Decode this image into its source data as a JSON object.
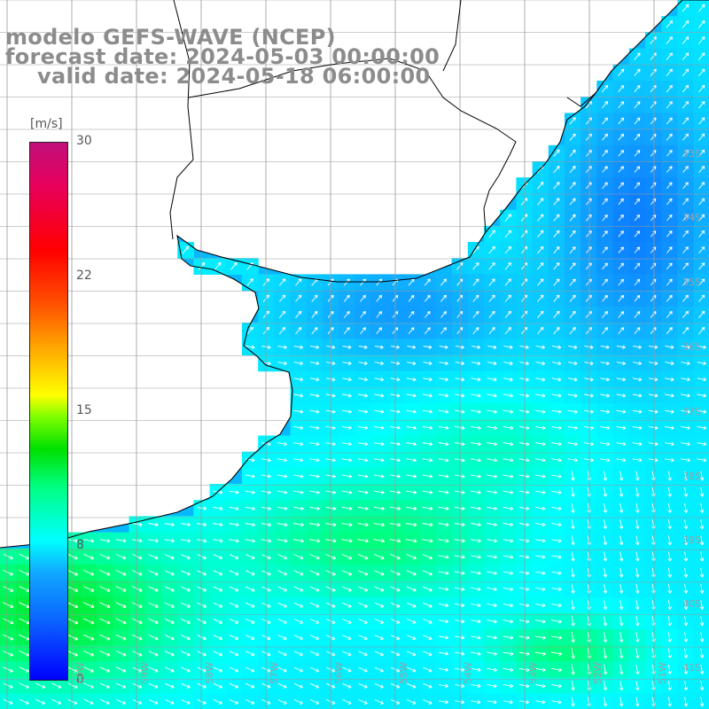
{
  "title": {
    "line1": "modelo GEFS-WAVE (NCEP)",
    "line2": "forecast date: 2024-05-03 00:00:00",
    "line3": "valid date: 2024-05-18 06:00:00"
  },
  "legend": {
    "unit": "[m/s]",
    "ticks": [
      "0",
      "8",
      "15",
      "22",
      "30"
    ],
    "min": 0,
    "max": 30
  },
  "lat_labels": [
    "33S",
    "34S",
    "35S",
    "36S",
    "37S",
    "38S",
    "39S",
    "40S",
    "41S"
  ],
  "lon_labels": [
    "60W",
    "59W",
    "58W",
    "57W",
    "56W",
    "55W",
    "54W",
    "53W",
    "52W",
    "51W"
  ],
  "colors": {
    "land": "#ffffff",
    "coast": "#000000",
    "grid": "#9a9a9a",
    "arrow": "#ffffff",
    "title": "#8c8c8c"
  }
}
